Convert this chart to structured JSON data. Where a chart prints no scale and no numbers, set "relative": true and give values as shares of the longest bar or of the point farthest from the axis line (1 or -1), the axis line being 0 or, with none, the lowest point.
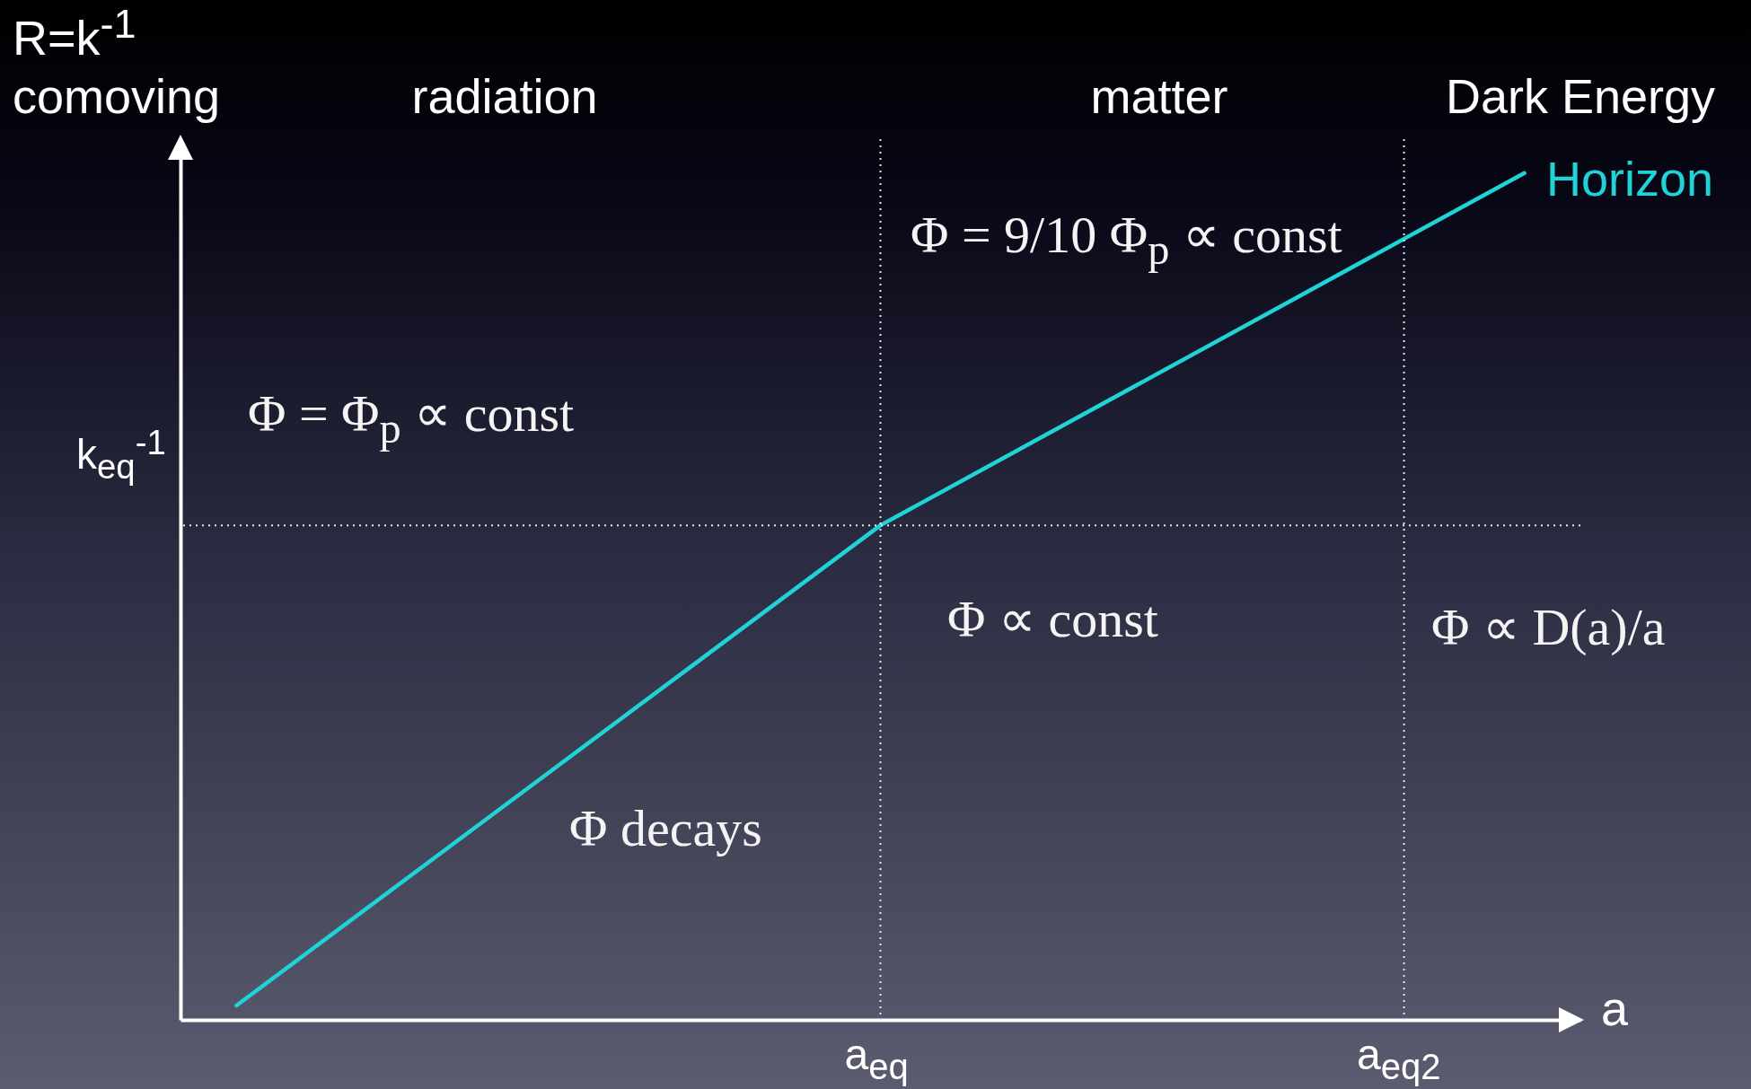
{
  "chart_data": {
    "type": "line",
    "relative": true,
    "ylabel": "R=k$^{-1}$ comoving",
    "xlabel": "a",
    "categories": [
      null,
      null,
      null
    ],
    "series": [
      {
        "name": "Horizon",
        "color": "#1fd3d6",
        "values": [
          0.017,
          0.584,
          1
        ]
      }
    ],
    "ref_lines": [
      {
        "axis": "x",
        "label": "a$_{eq}$",
        "line_style": "dotted"
      },
      {
        "axis": "x",
        "label": "a$_{eq2}$",
        "line_style": "dotted"
      },
      {
        "axis": "y",
        "label": "k$_{eq}$$^{-1}$",
        "line_style": "dotted"
      }
    ],
    "annotations": [
      "radiation",
      "matter",
      "Dark Energy",
      "Φ = 9/10 Φ$_{p}$ ∝ const",
      "Φ = Φ$_{p}$ ∝ const",
      "Φ ∝ const",
      "Φ ∝ D(a)/a",
      "Φ decays"
    ]
  }
}
